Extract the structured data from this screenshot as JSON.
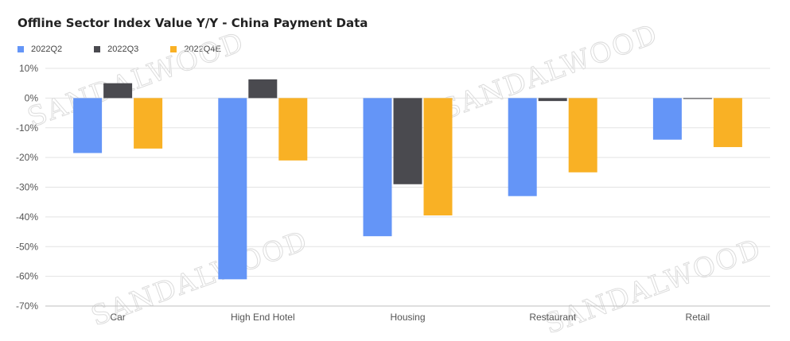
{
  "chart_data": {
    "type": "bar",
    "title": "Offline Sector Index Value Y/Y - China Payment Data",
    "categories": [
      "Car",
      "High End Hotel",
      "Housing",
      "Restaurant",
      "Retail"
    ],
    "series": [
      {
        "name": "2022Q2",
        "color": "#6495F7",
        "values": [
          -18.5,
          -61,
          -46.5,
          -33,
          -14
        ]
      },
      {
        "name": "2022Q3",
        "color": "#4A4A4F",
        "values": [
          5,
          6.3,
          -29,
          -1,
          -0.3
        ]
      },
      {
        "name": "2022Q4E",
        "color": "#F9B125",
        "values": [
          -17,
          -21,
          -39.5,
          -25,
          -16.5
        ]
      }
    ],
    "ylim": [
      -70,
      10
    ],
    "yticks": [
      10,
      0,
      -10,
      -20,
      -30,
      -40,
      -50,
      -60,
      -70
    ],
    "ytick_labels": [
      "10%",
      "0%",
      "-10%",
      "-20%",
      "-30%",
      "-40%",
      "-50%",
      "-60%",
      "-70%"
    ],
    "grid": true,
    "legend_position": "top-left"
  },
  "watermark": "SANDALWOOD"
}
